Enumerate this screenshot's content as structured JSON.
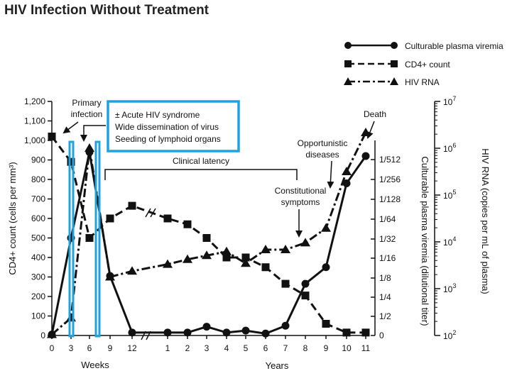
{
  "page_title": "HIV Infection Without Treatment",
  "colors": {
    "line": "#111111",
    "highlight": "#1fa2dd"
  },
  "chart_data": {
    "type": "line",
    "title": "HIV Infection Without Treatment",
    "x_ticks": [
      "0",
      "3",
      "6",
      "9",
      "12",
      "1",
      "2",
      "3",
      "4",
      "5",
      "6",
      "7",
      "8",
      "9",
      "10",
      "11"
    ],
    "x_unit_labels": {
      "weeks": "Weeks",
      "years": "Years"
    },
    "left_axis": {
      "label": "CD4+ count (cells per mm³)",
      "ylim": [
        0,
        1200
      ],
      "ticks": [
        "0",
        "100",
        "200",
        "300",
        "400",
        "500",
        "600",
        "700",
        "800",
        "900",
        "1,000",
        "1,100",
        "1,200"
      ]
    },
    "mid_axis": {
      "label": "Culturable plasma viremia (dilutional titer)",
      "ticks": [
        "0",
        "1/2",
        "1/4",
        "1/8",
        "1/16",
        "1/32",
        "1/64",
        "1/128",
        "1/256",
        "1/512"
      ]
    },
    "right_axis": {
      "label": "HIV RNA (copies per mL of plasma)",
      "ticks": [
        {
          "base": "10",
          "exp": "2"
        },
        {
          "base": "10",
          "exp": "3"
        },
        {
          "base": "10",
          "exp": "4"
        },
        {
          "base": "10",
          "exp": "5"
        },
        {
          "base": "10",
          "exp": "6"
        },
        {
          "base": "10",
          "exp": "7"
        }
      ]
    },
    "series": [
      {
        "name": "Culturable plasma viremia",
        "style": "solid",
        "marker": "circle",
        "x": [
          0,
          1,
          2,
          3,
          4,
          5,
          6,
          7,
          8,
          9,
          10,
          11,
          12,
          13,
          14,
          15
        ],
        "values": [
          5,
          500,
          940,
          305,
          15,
          15,
          15,
          45,
          15,
          25,
          10,
          50,
          265,
          350,
          780,
          920
        ]
      },
      {
        "name": "CD4+ count",
        "style": "dashed",
        "marker": "square",
        "x": [
          0,
          1,
          2,
          3,
          4,
          5,
          6,
          7,
          8,
          9,
          10,
          11,
          12,
          13,
          14,
          15
        ],
        "values": [
          1020,
          890,
          500,
          600,
          665,
          600,
          570,
          500,
          400,
          400,
          350,
          265,
          205,
          60,
          15,
          15
        ]
      },
      {
        "name": "HIV RNA",
        "style": "dashdot",
        "marker": "triangle",
        "x": [
          0,
          1,
          2,
          3,
          4,
          5,
          6,
          7,
          8,
          9,
          10,
          11,
          12,
          13,
          14,
          15
        ],
        "values": [
          5,
          90,
          960,
          300,
          330,
          365,
          390,
          410,
          430,
          370,
          440,
          440,
          475,
          550,
          840,
          1040
        ]
      }
    ],
    "annotations": {
      "primary_infection": [
        "Primary",
        "infection"
      ],
      "box_lines": [
        "± Acute HIV syndrome",
        "Wide dissemination of virus",
        "Seeding of lymphoid organs"
      ],
      "clinical_latency": "Clinical latency",
      "constitutional_symptoms": [
        "Constitutional",
        "symptoms"
      ],
      "opportunistic_diseases": [
        "Opportunistic",
        "diseases"
      ],
      "death": "Death"
    },
    "legend_position": "top-right"
  }
}
